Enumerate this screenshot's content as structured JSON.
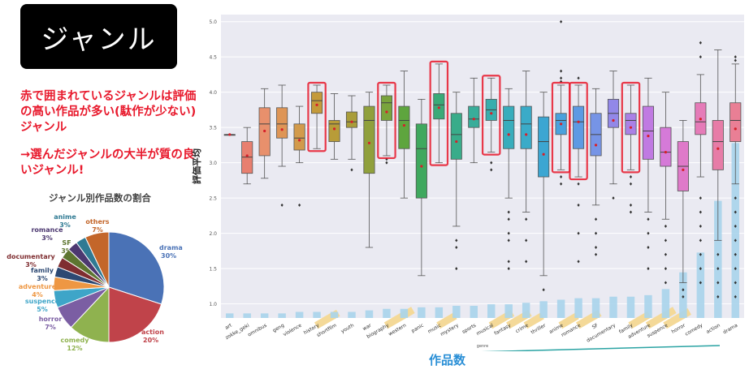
{
  "slide": {
    "title": "ジャンル",
    "note1": "赤で囲まれているジャンルは評価の高い作品が多い(駄作が少ない)ジャンル",
    "note2": "→選んだジャンルの大半が質の良いジャンル!",
    "xaxis_caption": "作品数"
  },
  "colors": {
    "red": "#e8192c",
    "highlight": "#f4d998",
    "count_bar": "#a9d4eb",
    "caption": "#2a8fd6",
    "axis_line": "#2aa3a3"
  },
  "chart_data": [
    {
      "type": "pie",
      "title": "ジャンル別作品数の割合",
      "slices": [
        {
          "label": "drama",
          "value": 30,
          "pct": "30%",
          "color": "#4a72b6"
        },
        {
          "label": "action",
          "value": 20,
          "pct": "20%",
          "color": "#c0434a"
        },
        {
          "label": "comedy",
          "value": 12,
          "pct": "12%",
          "color": "#8fb24f"
        },
        {
          "label": "horror",
          "value": 7,
          "pct": "7%",
          "color": "#7b5ea3"
        },
        {
          "label": "suspence",
          "value": 5,
          "pct": "5%",
          "color": "#3ea5c8"
        },
        {
          "label": "adventure",
          "value": 4,
          "pct": "4%",
          "color": "#ee9743"
        },
        {
          "label": "family",
          "value": 3,
          "pct": "3%",
          "color": "#2d4973"
        },
        {
          "label": "documentary",
          "value": 3,
          "pct": "3%",
          "color": "#7f2e31"
        },
        {
          "label": "SF",
          "value": 3,
          "pct": "3%",
          "color": "#5d7530"
        },
        {
          "label": "romance",
          "value": 3,
          "pct": "3%",
          "color": "#4c3870"
        },
        {
          "label": "anime",
          "value": 3,
          "pct": "3%",
          "color": "#2f7a93"
        },
        {
          "label": "others",
          "value": 7,
          "pct": "7%",
          "color": "#c3662a"
        }
      ]
    },
    {
      "type": "box",
      "ylabel": "評価平均",
      "xlabel": "genre",
      "ylim": [
        0.8,
        5.1
      ],
      "yticks": [
        "1.0",
        "1.5",
        "2.0",
        "2.5",
        "3.0",
        "3.5",
        "4.0",
        "4.5",
        "5.0"
      ],
      "boxes": [
        {
          "genre": "art",
          "q1": 3.4,
          "med": 3.4,
          "q3": 3.4,
          "lo": 3.4,
          "hi": 3.4,
          "mean": 3.4,
          "outliers": [],
          "color": "#cfcfcf",
          "count": 0.3,
          "highlight": false,
          "redbox": false
        },
        {
          "genre": "zokke_geki",
          "q1": 2.85,
          "med": 3.08,
          "q3": 3.3,
          "lo": 2.7,
          "hi": 3.5,
          "mean": 3.1,
          "outliers": [],
          "color": "#e87f6f",
          "count": 0.3,
          "highlight": false,
          "redbox": false
        },
        {
          "genre": "omnibus",
          "q1": 3.1,
          "med": 3.55,
          "q3": 3.78,
          "lo": 2.78,
          "hi": 4.05,
          "mean": 3.45,
          "outliers": [],
          "color": "#e8906c",
          "count": 0.3,
          "highlight": false,
          "redbox": false
        },
        {
          "genre": "geng",
          "q1": 3.35,
          "med": 3.55,
          "q3": 3.78,
          "lo": 2.95,
          "hi": 4.1,
          "mean": 3.47,
          "outliers": [
            2.4
          ],
          "color": "#de9556",
          "count": 0.3,
          "highlight": false,
          "redbox": false
        },
        {
          "genre": "violence",
          "q1": 3.18,
          "med": 3.35,
          "q3": 3.55,
          "lo": 3.0,
          "hi": 3.8,
          "mean": 3.32,
          "outliers": [
            2.4
          ],
          "color": "#d29a4b",
          "count": 0.4,
          "highlight": false,
          "redbox": false
        },
        {
          "genre": "history",
          "q1": 3.7,
          "med": 3.88,
          "q3": 4.0,
          "lo": 3.2,
          "hi": 4.1,
          "mean": 3.82,
          "outliers": [],
          "color": "#c49a3a",
          "count": 0.4,
          "highlight": true,
          "redbox": true
        },
        {
          "genre": "shortfilm",
          "q1": 3.3,
          "med": 3.55,
          "q3": 3.6,
          "lo": 3.05,
          "hi": 3.98,
          "mean": 3.48,
          "outliers": [],
          "color": "#b89c38",
          "count": 0.4,
          "highlight": false,
          "redbox": false
        },
        {
          "genre": "youth",
          "q1": 3.5,
          "med": 3.58,
          "q3": 3.72,
          "lo": 3.05,
          "hi": 3.95,
          "mean": 3.58,
          "outliers": [
            2.9
          ],
          "color": "#a99d3a",
          "count": 0.4,
          "highlight": false,
          "redbox": false
        },
        {
          "genre": "war",
          "q1": 2.85,
          "med": 3.6,
          "q3": 3.8,
          "lo": 1.8,
          "hi": 4.0,
          "mean": 3.28,
          "outliers": [],
          "color": "#90a03c",
          "count": 0.5,
          "highlight": false,
          "redbox": false
        },
        {
          "genre": "biography",
          "q1": 3.6,
          "med": 3.85,
          "q3": 3.95,
          "lo": 3.1,
          "hi": 4.1,
          "mean": 3.72,
          "outliers": [
            3.0,
            3.05
          ],
          "color": "#79a43c",
          "count": 0.6,
          "highlight": true,
          "redbox": true
        },
        {
          "genre": "western",
          "q1": 3.2,
          "med": 3.6,
          "q3": 3.8,
          "lo": 2.5,
          "hi": 4.3,
          "mean": 3.53,
          "outliers": [],
          "color": "#5ea53e",
          "count": 0.6,
          "highlight": false,
          "redbox": false
        },
        {
          "genre": "panic",
          "q1": 2.5,
          "med": 3.2,
          "q3": 3.55,
          "lo": 1.4,
          "hi": 3.9,
          "mean": 2.95,
          "outliers": [],
          "color": "#3fa85e",
          "count": 0.7,
          "highlight": false,
          "redbox": false
        },
        {
          "genre": "music",
          "q1": 3.62,
          "med": 3.82,
          "q3": 3.98,
          "lo": 3.0,
          "hi": 4.4,
          "mean": 3.78,
          "outliers": [],
          "color": "#3aaa78",
          "count": 0.7,
          "highlight": true,
          "redbox": true
        },
        {
          "genre": "mystery",
          "q1": 3.05,
          "med": 3.4,
          "q3": 3.7,
          "lo": 2.1,
          "hi": 4.0,
          "mean": 3.3,
          "outliers": [
            1.9,
            1.8,
            1.5
          ],
          "color": "#39ac8a",
          "count": 0.8,
          "highlight": false,
          "redbox": false
        },
        {
          "genre": "sports",
          "q1": 3.5,
          "med": 3.62,
          "q3": 3.8,
          "lo": 3.0,
          "hi": 4.2,
          "mean": 3.62,
          "outliers": [],
          "color": "#38ad9a",
          "count": 0.8,
          "highlight": false,
          "redbox": false
        },
        {
          "genre": "musical",
          "q1": 3.6,
          "med": 3.75,
          "q3": 3.9,
          "lo": 3.15,
          "hi": 4.2,
          "mean": 3.7,
          "outliers": [
            3.0,
            2.9
          ],
          "color": "#38aead",
          "count": 0.9,
          "highlight": true,
          "redbox": true
        },
        {
          "genre": "fantasy",
          "q1": 3.2,
          "med": 3.6,
          "q3": 3.8,
          "lo": 2.5,
          "hi": 4.05,
          "mean": 3.4,
          "outliers": [
            2.3,
            2.2,
            2.0,
            1.9,
            1.6,
            1.5
          ],
          "color": "#38adbc",
          "count": 0.9,
          "highlight": true,
          "redbox": false
        },
        {
          "genre": "crime",
          "q1": 3.2,
          "med": 3.55,
          "q3": 3.8,
          "lo": 2.3,
          "hi": 4.3,
          "mean": 3.4,
          "outliers": [
            2.2,
            1.9,
            1.6
          ],
          "color": "#3aabc8",
          "count": 1.0,
          "highlight": true,
          "redbox": false
        },
        {
          "genre": "thriller",
          "q1": 2.8,
          "med": 3.3,
          "q3": 3.65,
          "lo": 1.4,
          "hi": 4.0,
          "mean": 3.12,
          "outliers": [
            1.2
          ],
          "color": "#3ca6d2",
          "count": 1.1,
          "highlight": false,
          "redbox": false
        },
        {
          "genre": "anime",
          "q1": 3.4,
          "med": 3.6,
          "q3": 3.7,
          "lo": 2.9,
          "hi": 4.1,
          "mean": 3.55,
          "outliers": [
            5.0,
            4.3,
            4.2,
            4.15,
            2.8,
            2.7
          ],
          "color": "#4aa1dd",
          "count": 1.2,
          "highlight": true,
          "redbox": true
        },
        {
          "genre": "romance",
          "q1": 3.2,
          "med": 3.58,
          "q3": 3.8,
          "lo": 2.8,
          "hi": 4.1,
          "mean": 3.58,
          "outliers": [
            4.2,
            2.7,
            2.4,
            2.0,
            1.6
          ],
          "color": "#5d9ae3",
          "count": 1.3,
          "highlight": true,
          "redbox": true
        },
        {
          "genre": "SF",
          "q1": 3.1,
          "med": 3.4,
          "q3": 3.7,
          "lo": 2.4,
          "hi": 4.05,
          "mean": 3.25,
          "outliers": [
            2.2,
            2.0,
            1.8,
            1.7
          ],
          "color": "#7694e6",
          "count": 1.3,
          "highlight": false,
          "redbox": false
        },
        {
          "genre": "documentary",
          "q1": 3.5,
          "med": 3.7,
          "q3": 3.9,
          "lo": 2.7,
          "hi": 4.3,
          "mean": 3.6,
          "outliers": [
            2.5
          ],
          "color": "#9288e8",
          "count": 1.4,
          "highlight": false,
          "redbox": false
        },
        {
          "genre": "family",
          "q1": 3.4,
          "med": 3.6,
          "q3": 3.7,
          "lo": 2.9,
          "hi": 4.1,
          "mean": 3.5,
          "outliers": [
            2.8,
            2.7,
            2.4,
            2.3
          ],
          "color": "#aa80e6",
          "count": 1.4,
          "highlight": true,
          "redbox": true
        },
        {
          "genre": "adventure",
          "q1": 3.05,
          "med": 3.45,
          "q3": 3.8,
          "lo": 2.3,
          "hi": 4.2,
          "mean": 3.38,
          "outliers": [
            2.2,
            2.0,
            1.8,
            1.5
          ],
          "color": "#c07ae2",
          "count": 1.5,
          "highlight": true,
          "redbox": false
        },
        {
          "genre": "suspence",
          "q1": 2.95,
          "med": 3.15,
          "q3": 3.5,
          "lo": 2.2,
          "hi": 4.0,
          "mean": 3.15,
          "outliers": [
            2.1,
            1.9,
            1.7,
            1.5,
            1.3
          ],
          "color": "#d57ad8",
          "count": 1.9,
          "highlight": true,
          "redbox": false
        },
        {
          "genre": "horror",
          "q1": 2.6,
          "med": 2.95,
          "q3": 3.3,
          "lo": 1.3,
          "hi": 3.6,
          "mean": 2.9,
          "outliers": [
            1.2,
            1.1
          ],
          "color": "#df7ac9",
          "count": 3.0,
          "highlight": false,
          "redbox": false
        },
        {
          "genre": "comedy",
          "q1": 3.4,
          "med": 3.58,
          "q3": 3.85,
          "lo": 2.8,
          "hi": 4.25,
          "mean": 3.62,
          "outliers": [
            4.7,
            4.5,
            2.5,
            2.3,
            2.1,
            1.9,
            1.7,
            1.5,
            1.3
          ],
          "color": "#e57bb8",
          "count": 4.3,
          "highlight": false,
          "redbox": false
        },
        {
          "genre": "action",
          "q1": 2.9,
          "med": 3.3,
          "q3": 3.6,
          "lo": 1.9,
          "hi": 4.6,
          "mean": 3.2,
          "outliers": [
            1.7,
            1.5,
            1.3,
            1.1
          ],
          "color": "#e77ca7",
          "count": 7.7,
          "highlight": false,
          "redbox": false
        },
        {
          "genre": "drama",
          "q1": 3.3,
          "med": 3.6,
          "q3": 3.85,
          "lo": 2.7,
          "hi": 4.4,
          "mean": 3.48,
          "outliers": [
            4.5,
            4.45,
            2.5,
            2.3,
            2.1,
            1.9,
            1.7,
            1.5,
            1.3,
            1.1
          ],
          "color": "#e97f95",
          "count": 11.5,
          "highlight": false,
          "redbox": false
        }
      ]
    }
  ]
}
